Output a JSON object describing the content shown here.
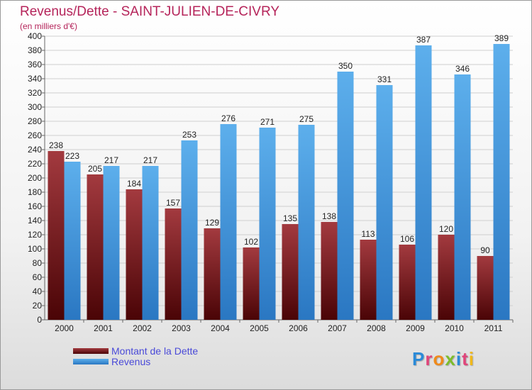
{
  "header": {
    "title": "Revenus/Dette - SAINT-JULIEN-DE-CIVRY",
    "subtitle": "(en milliers d'€)"
  },
  "legend": {
    "debt_label": "Montant de la Dette",
    "revenue_label": "Revenus"
  },
  "logo": {
    "text": "Proxiti"
  },
  "colors": {
    "debt_dark": "#4a0406",
    "debt_light": "#a33a3f",
    "revenue_dark": "#2a77c2",
    "revenue_light": "#5dafec",
    "title": "#b5245a",
    "legend_text": "#4a4ad8"
  },
  "chart_data": {
    "type": "bar",
    "title": "Revenus/Dette - SAINT-JULIEN-DE-CIVRY",
    "subtitle": "(en milliers d'€)",
    "categories": [
      "2000",
      "2001",
      "2002",
      "2003",
      "2004",
      "2005",
      "2006",
      "2007",
      "2008",
      "2009",
      "2010",
      "2011"
    ],
    "series": [
      {
        "name": "Montant de la Dette",
        "values": [
          238,
          205,
          184,
          157,
          129,
          102,
          135,
          138,
          113,
          106,
          120,
          90
        ]
      },
      {
        "name": "Revenus",
        "values": [
          223,
          217,
          217,
          253,
          276,
          271,
          275,
          350,
          331,
          387,
          346,
          389
        ]
      }
    ],
    "yticks": [
      0,
      20,
      40,
      60,
      80,
      100,
      120,
      140,
      160,
      180,
      200,
      220,
      240,
      260,
      280,
      300,
      320,
      340,
      360,
      380,
      400
    ],
    "ylim": [
      0,
      400
    ],
    "grid": true,
    "legend_position": "bottom-left"
  }
}
